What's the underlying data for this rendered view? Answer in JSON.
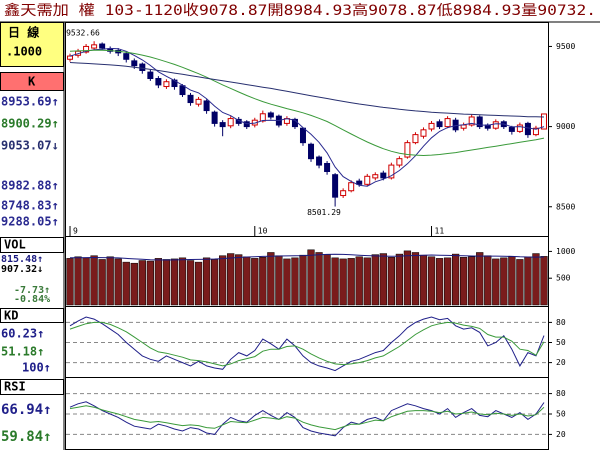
{
  "title": "鑫天需加 權 103-1120收9078.87開8984.93高9078.87低8984.93量90732.",
  "sidebar": {
    "period": "日 線",
    "unit": ".1000",
    "k_label": "K",
    "k_values": [
      "8953.69↑",
      "8900.29↑",
      "9053.07↓",
      "8982.88↑",
      "8748.83↑",
      "9288.05↑"
    ],
    "vol_label": "VOL",
    "vol_values": [
      "815.48↑",
      "907.32↓",
      "-7.73↑",
      "-0.84%"
    ],
    "kd_label": "KD",
    "kd_values": [
      "60.23↑",
      "51.18↑",
      "100↑"
    ],
    "rsi_label": "RSI",
    "rsi_values": [
      "66.94↑",
      "59.84↑"
    ]
  },
  "chart_data": [
    {
      "type": "candlestick",
      "categories": [
        "9",
        null,
        null,
        null,
        null,
        null,
        null,
        null,
        null,
        null,
        null,
        null,
        null,
        null,
        null,
        null,
        null,
        null,
        null,
        null,
        null,
        null,
        null,
        "10",
        null,
        null,
        null,
        null,
        null,
        null,
        null,
        null,
        null,
        null,
        null,
        null,
        null,
        null,
        null,
        null,
        null,
        null,
        null,
        null,
        null,
        "11",
        null,
        null,
        null,
        null,
        null,
        null,
        null,
        null,
        null,
        null,
        null,
        null,
        null,
        null
      ],
      "open": [
        9420,
        9445,
        9465,
        9490,
        9515,
        9485,
        9475,
        9455,
        9410,
        9390,
        9340,
        9300,
        9250,
        9290,
        9255,
        9195,
        9140,
        9160,
        9090,
        9025,
        9005,
        9045,
        9030,
        9010,
        9035,
        9085,
        9065,
        9020,
        9045,
        8990,
        8890,
        8810,
        8770,
        8700,
        8570,
        8600,
        8660,
        8640,
        8680,
        8710,
        8680,
        8760,
        8810,
        8900,
        8940,
        8985,
        9030,
        9000,
        9040,
        8990,
        9010,
        9060,
        9010,
        8990,
        9030,
        8995,
        8970,
        9020,
        8950,
        8984.93
      ],
      "high": [
        9455,
        9485,
        9515,
        9532.66,
        9525,
        9500,
        9490,
        9465,
        9425,
        9400,
        9355,
        9315,
        9295,
        9300,
        9265,
        9210,
        9185,
        9170,
        9100,
        9040,
        9065,
        9060,
        9040,
        9055,
        9100,
        9095,
        9075,
        9065,
        9055,
        8995,
        8900,
        8820,
        8785,
        8710,
        8615,
        8665,
        8675,
        8705,
        8715,
        8725,
        8775,
        8815,
        8915,
        8965,
        8995,
        9035,
        9045,
        9065,
        9055,
        9025,
        9075,
        9070,
        9020,
        9045,
        9040,
        9005,
        9025,
        9030,
        9005,
        9078.87
      ],
      "low": [
        9405,
        9430,
        9455,
        9480,
        9475,
        9455,
        9440,
        9400,
        9360,
        9330,
        9285,
        9240,
        9235,
        9230,
        9185,
        9130,
        9125,
        9080,
        9000,
        8940,
        8990,
        9005,
        8985,
        8995,
        9025,
        9045,
        8995,
        9005,
        8985,
        8880,
        8780,
        8740,
        8700,
        8501.29,
        8555,
        8590,
        8625,
        8630,
        8665,
        8665,
        8670,
        8745,
        8800,
        8890,
        8925,
        8970,
        8985,
        8990,
        8965,
        8975,
        9000,
        8985,
        8975,
        8980,
        8985,
        8950,
        8960,
        8930,
        8940,
        8984.93
      ],
      "close": [
        9440,
        9470,
        9500,
        9510,
        9490,
        9470,
        9460,
        9420,
        9380,
        9350,
        9300,
        9260,
        9280,
        9250,
        9200,
        9150,
        9170,
        9100,
        9020,
        9000,
        9050,
        9020,
        9000,
        9040,
        9080,
        9060,
        9010,
        9050,
        9000,
        8900,
        8800,
        8760,
        8720,
        8560,
        8600,
        8650,
        8640,
        8690,
        8700,
        8680,
        8760,
        8800,
        8900,
        8950,
        8980,
        9020,
        9000,
        9050,
        8980,
        9010,
        9060,
        9000,
        8990,
        9030,
        9000,
        8970,
        9010,
        8950,
        8990,
        9078.87
      ],
      "up_color": "#d00000",
      "down_color": "#000066",
      "series": [
        {
          "color": "#2a2a90",
          "values": [
            9440,
            9455,
            9470,
            9480,
            9482,
            9488,
            9486,
            9470,
            9444,
            9416,
            9382,
            9342,
            9314,
            9288,
            9258,
            9228,
            9210,
            9174,
            9128,
            9088,
            9068,
            9038,
            9018,
            9022,
            9038,
            9040,
            9038,
            9050,
            9040,
            8994,
            8952,
            8902,
            8836,
            8748,
            8688,
            8658,
            8634,
            8628,
            8656,
            8672,
            8694,
            8726,
            8768,
            8818,
            8878,
            8930,
            8970,
            8994,
            9006,
            9012,
            9020,
            9010,
            9008,
            9018,
            9016,
            8998,
            9000,
            8992,
            8984,
            9000
          ]
        },
        {
          "color": "#3a9a3a",
          "values": [
            9470,
            9472,
            9474,
            9476,
            9476,
            9474,
            9470,
            9464,
            9456,
            9446,
            9434,
            9420,
            9404,
            9388,
            9370,
            9350,
            9330,
            9308,
            9284,
            9260,
            9238,
            9216,
            9194,
            9174,
            9156,
            9140,
            9126,
            9112,
            9100,
            9086,
            9070,
            9052,
            9032,
            9006,
            8980,
            8954,
            8928,
            8904,
            8882,
            8862,
            8846,
            8834,
            8826,
            8822,
            8820,
            8822,
            8826,
            8832,
            8838,
            8846,
            8854,
            8862,
            8870,
            8878,
            8886,
            8894,
            8902,
            8910,
            8918,
            8928
          ]
        },
        {
          "color": "#283070",
          "values": [
            9400,
            9397,
            9394,
            9391,
            9388,
            9385,
            9381,
            9376,
            9370,
            9364,
            9357,
            9350,
            9342,
            9334,
            9326,
            9318,
            9310,
            9302,
            9294,
            9286,
            9278,
            9270,
            9262,
            9254,
            9246,
            9238,
            9229,
            9220,
            9211,
            9202,
            9193,
            9184,
            9175,
            9166,
            9157,
            9149,
            9141,
            9134,
            9127,
            9120,
            9114,
            9108,
            9103,
            9098,
            9094,
            9090,
            9087,
            9084,
            9081,
            9078,
            9076,
            9074,
            9072,
            9070,
            9068,
            9066,
            9064,
            9062,
            9061,
            9060
          ]
        }
      ],
      "ylim": [
        8380,
        9640
      ],
      "yticks": [
        9500,
        9000,
        8500
      ],
      "grid": false
    },
    {
      "type": "bar",
      "values": [
        870,
        900,
        880,
        920,
        850,
        900,
        860,
        800,
        780,
        830,
        820,
        870,
        850,
        860,
        880,
        830,
        800,
        880,
        850,
        920,
        960,
        940,
        900,
        870,
        890,
        980,
        920,
        860,
        880,
        930,
        1030,
        980,
        940,
        880,
        860,
        870,
        900,
        880,
        940,
        960,
        890,
        950,
        1010,
        980,
        930,
        900,
        870,
        880,
        950,
        890,
        900,
        980,
        920,
        860,
        880,
        900,
        850,
        900,
        960,
        907.32
      ],
      "color": "#7a1c1c",
      "series": [
        {
          "color": "#1a1a80",
          "values": [
            880,
            882,
            884,
            886,
            884,
            882,
            878,
            870,
            860,
            852,
            846,
            842,
            840,
            842,
            846,
            848,
            850,
            854,
            858,
            866,
            876,
            886,
            896,
            902,
            906,
            910,
            914,
            916,
            918,
            922,
            930,
            938,
            944,
            946,
            944,
            938,
            930,
            922,
            916,
            912,
            910,
            912,
            918,
            924,
            930,
            932,
            930,
            926,
            922,
            918,
            914,
            912,
            912,
            912,
            910,
            906,
            900,
            896,
            894,
            896
          ]
        }
      ],
      "ylim": [
        0,
        1250
      ],
      "yticks": [
        1000,
        500
      ],
      "grid": false
    },
    {
      "type": "line",
      "series": [
        {
          "color": "#20208a",
          "values": [
            75,
            82,
            88,
            85,
            78,
            70,
            62,
            50,
            40,
            30,
            25,
            22,
            30,
            25,
            20,
            15,
            22,
            15,
            12,
            10,
            25,
            35,
            30,
            38,
            55,
            48,
            40,
            55,
            45,
            30,
            20,
            15,
            12,
            8,
            15,
            22,
            25,
            30,
            35,
            38,
            50,
            60,
            72,
            80,
            85,
            88,
            84,
            86,
            75,
            70,
            72,
            65,
            45,
            50,
            60,
            40,
            15,
            35,
            30,
            60.23
          ]
        },
        {
          "color": "#3a9a3a",
          "values": [
            70,
            74,
            78,
            80,
            80,
            77,
            72,
            66,
            58,
            50,
            42,
            36,
            34,
            31,
            28,
            24,
            23,
            21,
            18,
            15,
            18,
            23,
            26,
            29,
            37,
            40,
            40,
            44,
            45,
            40,
            33,
            27,
            22,
            18,
            17,
            18,
            20,
            23,
            27,
            30,
            37,
            44,
            53,
            62,
            69,
            75,
            78,
            80,
            79,
            76,
            74,
            71,
            62,
            58,
            58,
            52,
            40,
            38,
            31,
            51.18
          ]
        }
      ],
      "ylim": [
        0,
        100
      ],
      "yticks": [
        80,
        50,
        20
      ],
      "grid": true
    },
    {
      "type": "line",
      "series": [
        {
          "color": "#20208a",
          "values": [
            60,
            65,
            68,
            62,
            55,
            50,
            45,
            38,
            32,
            30,
            28,
            35,
            32,
            28,
            25,
            30,
            28,
            22,
            20,
            35,
            45,
            40,
            38,
            48,
            55,
            48,
            42,
            52,
            45,
            30,
            25,
            22,
            20,
            18,
            30,
            38,
            35,
            42,
            45,
            40,
            55,
            60,
            65,
            62,
            58,
            55,
            50,
            58,
            45,
            52,
            58,
            48,
            46,
            55,
            50,
            45,
            52,
            42,
            50,
            66.94
          ]
        },
        {
          "color": "#3a9a3a",
          "values": [
            58,
            60,
            62,
            60,
            56,
            53,
            50,
            46,
            42,
            40,
            38,
            39,
            37,
            35,
            33,
            34,
            33,
            30,
            29,
            34,
            39,
            38,
            37,
            41,
            45,
            44,
            42,
            46,
            44,
            38,
            34,
            31,
            29,
            27,
            31,
            35,
            35,
            38,
            41,
            40,
            46,
            50,
            54,
            55,
            55,
            54,
            52,
            54,
            50,
            51,
            53,
            50,
            49,
            51,
            50,
            48,
            50,
            47,
            49,
            59.84
          ]
        }
      ],
      "ylim": [
        0,
        100
      ],
      "yticks": [
        80,
        50,
        20
      ],
      "grid": true
    }
  ]
}
